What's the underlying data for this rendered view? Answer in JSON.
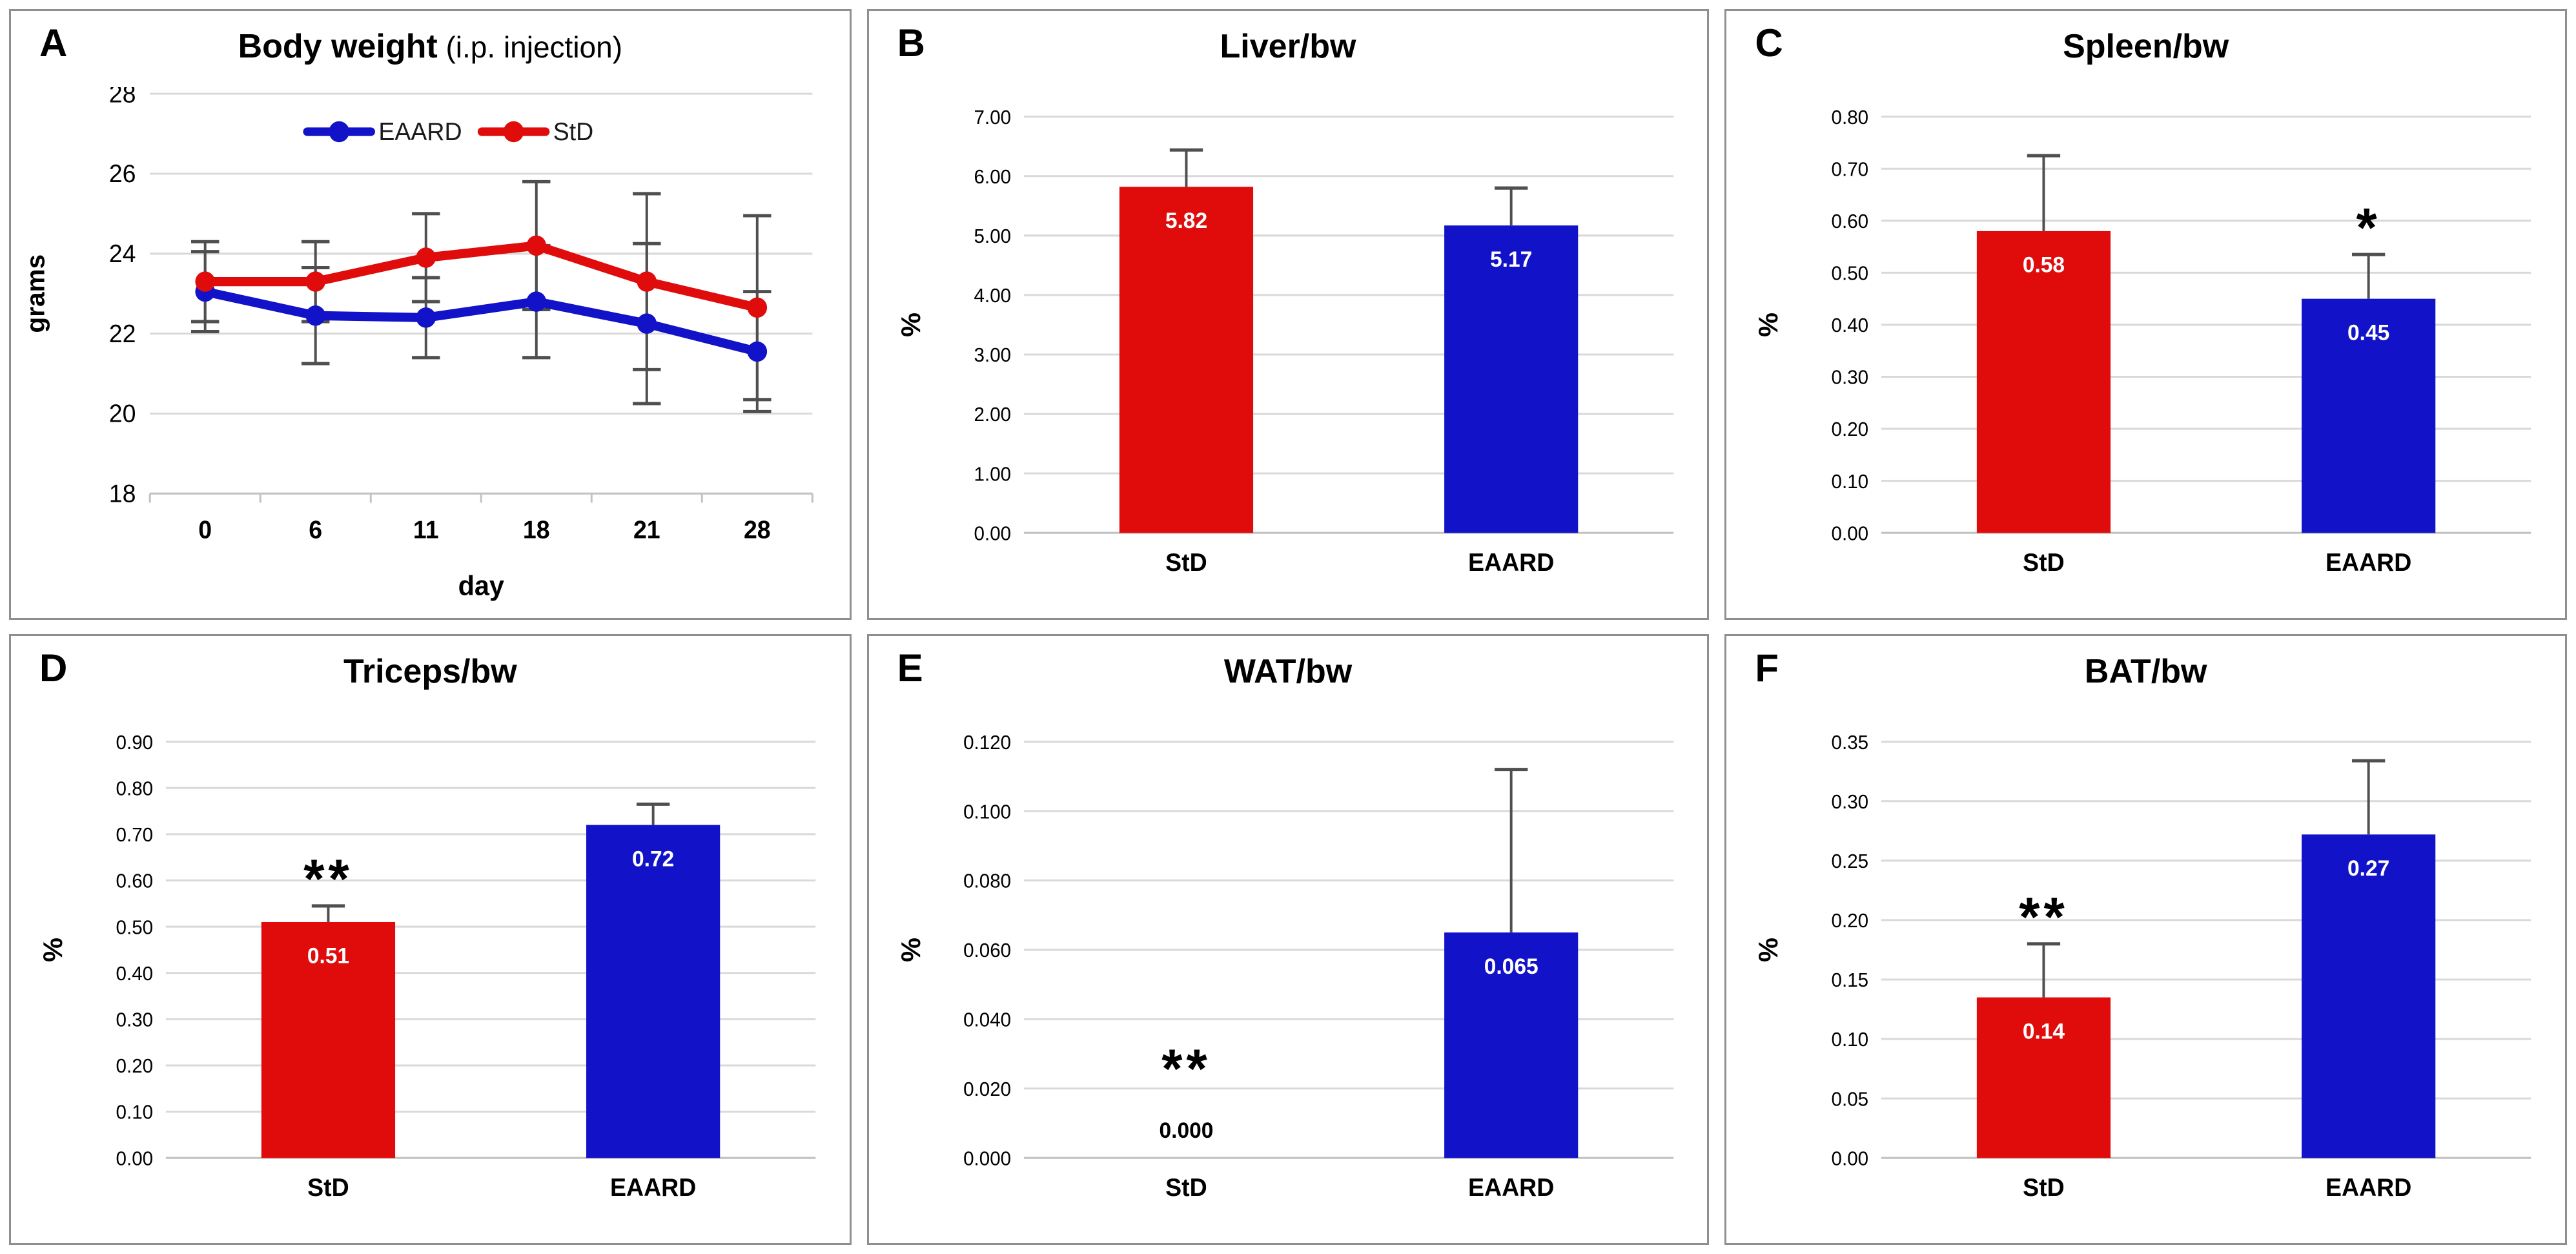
{
  "colors": {
    "std_red": "#E00C0C",
    "eaard_blue": "#1212C8",
    "error_bar": "#4F4F4F",
    "gridline": "#D9D9D9",
    "baseline": "#C2C2C2",
    "panel_border": "#8F8F8F",
    "background": "#FFFFFF",
    "text": "#000000"
  },
  "chart_data": [
    {
      "panel": "A",
      "type": "line",
      "title": "Body weight",
      "title_note": " (i.p. injection)",
      "xlabel": "day",
      "ylabel": "grams",
      "x": [
        "0",
        "6",
        "11",
        "18",
        "21",
        "28"
      ],
      "ylim": [
        18,
        28
      ],
      "yticks": [
        18,
        20,
        22,
        24,
        26,
        28
      ],
      "grid": "horizontal",
      "legend_position": "top-center",
      "series": [
        {
          "name": "EAARD",
          "color": "#1212C8",
          "values": [
            23.05,
            22.45,
            22.4,
            22.8,
            22.25,
            21.55
          ],
          "err": [
            1.0,
            1.2,
            1.0,
            1.4,
            2.0,
            1.5
          ]
        },
        {
          "name": "StD",
          "color": "#E00C0C",
          "values": [
            23.3,
            23.3,
            23.9,
            24.2,
            23.3,
            22.65
          ],
          "err": [
            1.0,
            1.0,
            1.1,
            1.6,
            2.2,
            2.3
          ]
        }
      ]
    },
    {
      "panel": "B",
      "type": "bar",
      "title": "Liver/bw",
      "ylabel": "%",
      "categories": [
        "StD",
        "EAARD"
      ],
      "colors": [
        "#E00C0C",
        "#1212C8"
      ],
      "values": [
        5.82,
        5.17
      ],
      "labels": [
        "5.82",
        "5.17"
      ],
      "errors": [
        0.62,
        0.63
      ],
      "sig": [
        "",
        ""
      ],
      "ylim": [
        0,
        7
      ],
      "ytick_step": 1,
      "ytick_decimals": 2,
      "grid": "horizontal"
    },
    {
      "panel": "C",
      "type": "bar",
      "title": "Spleen/bw",
      "ylabel": "%",
      "categories": [
        "StD",
        "EAARD"
      ],
      "colors": [
        "#E00C0C",
        "#1212C8"
      ],
      "values": [
        0.58,
        0.45
      ],
      "labels": [
        "0.58",
        "0.45"
      ],
      "errors": [
        0.145,
        0.085
      ],
      "sig": [
        "",
        "*"
      ],
      "ylim": [
        0,
        0.8
      ],
      "ytick_step": 0.1,
      "ytick_decimals": 2,
      "grid": "horizontal"
    },
    {
      "panel": "D",
      "type": "bar",
      "title": "Triceps/bw",
      "ylabel": "%",
      "categories": [
        "StD",
        "EAARD"
      ],
      "colors": [
        "#E00C0C",
        "#1212C8"
      ],
      "values": [
        0.51,
        0.72
      ],
      "labels": [
        "0.51",
        "0.72"
      ],
      "errors": [
        0.035,
        0.045
      ],
      "sig": [
        "**",
        ""
      ],
      "ylim": [
        0,
        0.9
      ],
      "ytick_step": 0.1,
      "ytick_decimals": 2,
      "grid": "horizontal"
    },
    {
      "panel": "E",
      "type": "bar",
      "title": "WAT/bw",
      "ylabel": "%",
      "categories": [
        "StD",
        "EAARD"
      ],
      "colors": [
        "#E00C0C",
        "#1212C8"
      ],
      "values": [
        0,
        0.065
      ],
      "labels": [
        "0.000",
        "0.065"
      ],
      "errors": [
        0,
        0.047
      ],
      "sig": [
        "**",
        ""
      ],
      "ylim": [
        0,
        0.12
      ],
      "ytick_step": 0.02,
      "ytick_decimals": 3,
      "grid": "horizontal"
    },
    {
      "panel": "F",
      "type": "bar",
      "title": "BAT/bw",
      "ylabel": "%",
      "categories": [
        "StD",
        "EAARD"
      ],
      "colors": [
        "#E00C0C",
        "#1212C8"
      ],
      "values": [
        0.135,
        0.272
      ],
      "labels": [
        "0.14",
        "0.27"
      ],
      "errors": [
        0.045,
        0.062
      ],
      "sig": [
        "**",
        ""
      ],
      "ylim": [
        0,
        0.35
      ],
      "ytick_step": 0.05,
      "ytick_decimals": 2,
      "grid": "horizontal"
    }
  ]
}
